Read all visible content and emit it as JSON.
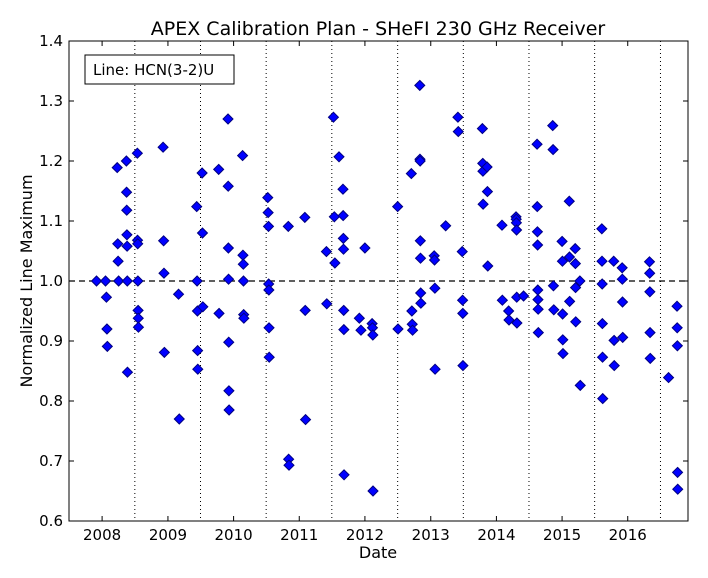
{
  "chart_data": {
    "type": "scatter",
    "title": "APEX Calibration Plan - SHeFI 230 GHz Receiver",
    "xlabel": "Date",
    "ylabel": "Normalized Line Maximum",
    "xlim": [
      "2007-07-01",
      "2016-12-01"
    ],
    "ylim": [
      0.6,
      1.4
    ],
    "x_ticks": [
      "2008",
      "2009",
      "2010",
      "2011",
      "2012",
      "2013",
      "2014",
      "2015",
      "2016"
    ],
    "x_tick_dates": [
      "2008-01-01",
      "2009-01-01",
      "2010-01-01",
      "2011-01-01",
      "2012-01-01",
      "2013-01-01",
      "2014-01-01",
      "2015-01-01",
      "2016-01-01"
    ],
    "y_ticks": [
      "0.6",
      "0.7",
      "0.8",
      "0.9",
      "1.0",
      "1.1",
      "1.2",
      "1.3",
      "1.4"
    ],
    "y_tick_values": [
      0.6,
      0.7,
      0.8,
      0.9,
      1.0,
      1.1,
      1.2,
      1.3,
      1.4
    ],
    "vertical_dotted_lines": [
      "2008-07-01",
      "2009-07-01",
      "2010-07-01",
      "2011-07-01",
      "2012-07-01",
      "2013-07-01",
      "2014-07-01",
      "2015-07-01",
      "2016-07-01"
    ],
    "reference_line": 1.0,
    "legend": {
      "text": "Line: HCN(3-2)U",
      "position": "top-left"
    },
    "marker_color": "#0000ff",
    "marker_edge": "#00007f",
    "points": [
      [
        "2007-12-01",
        1.0
      ],
      [
        "2008-01-20",
        1.0
      ],
      [
        "2008-01-25",
        0.973
      ],
      [
        "2008-01-28",
        0.92
      ],
      [
        "2008-01-30",
        0.891
      ],
      [
        "2008-03-25",
        1.189
      ],
      [
        "2008-03-28",
        1.062
      ],
      [
        "2008-03-30",
        1.033
      ],
      [
        "2008-04-02",
        1.0
      ],
      [
        "2008-05-15",
        1.2
      ],
      [
        "2008-05-16",
        1.148
      ],
      [
        "2008-05-17",
        1.118
      ],
      [
        "2008-05-18",
        1.077
      ],
      [
        "2008-05-19",
        1.058
      ],
      [
        "2008-05-20",
        1.0
      ],
      [
        "2008-05-21",
        0.848
      ],
      [
        "2008-07-15",
        1.213
      ],
      [
        "2008-07-16",
        1.068
      ],
      [
        "2008-07-17",
        1.062
      ],
      [
        "2008-07-18",
        1.0
      ],
      [
        "2008-07-19",
        0.951
      ],
      [
        "2008-07-20",
        0.938
      ],
      [
        "2008-07-21",
        0.923
      ],
      [
        "2008-12-05",
        1.223
      ],
      [
        "2008-12-08",
        1.067
      ],
      [
        "2008-12-10",
        1.013
      ],
      [
        "2008-12-12",
        0.881
      ],
      [
        "2009-03-01",
        0.978
      ],
      [
        "2009-03-05",
        0.77
      ],
      [
        "2009-06-10",
        1.124
      ],
      [
        "2009-06-12",
        1.0
      ],
      [
        "2009-06-14",
        0.95
      ],
      [
        "2009-06-15",
        0.884
      ],
      [
        "2009-06-16",
        0.853
      ],
      [
        "2009-07-10",
        1.18
      ],
      [
        "2009-07-12",
        1.08
      ],
      [
        "2009-07-14",
        0.957
      ],
      [
        "2009-10-10",
        1.186
      ],
      [
        "2009-10-12",
        0.946
      ],
      [
        "2009-12-01",
        1.27
      ],
      [
        "2009-12-02",
        1.158
      ],
      [
        "2009-12-03",
        1.055
      ],
      [
        "2009-12-04",
        1.003
      ],
      [
        "2009-12-05",
        0.898
      ],
      [
        "2009-12-06",
        0.817
      ],
      [
        "2009-12-07",
        0.785
      ],
      [
        "2010-02-20",
        1.209
      ],
      [
        "2010-02-22",
        1.043
      ],
      [
        "2010-02-24",
        1.028
      ],
      [
        "2010-02-25",
        1.0
      ],
      [
        "2010-02-26",
        0.944
      ],
      [
        "2010-02-27",
        0.938
      ],
      [
        "2010-07-10",
        1.139
      ],
      [
        "2010-07-12",
        1.114
      ],
      [
        "2010-07-14",
        1.091
      ],
      [
        "2010-07-15",
        0.995
      ],
      [
        "2010-07-16",
        0.985
      ],
      [
        "2010-07-17",
        0.922
      ],
      [
        "2010-07-18",
        0.873
      ],
      [
        "2010-11-01",
        1.091
      ],
      [
        "2010-11-03",
        0.703
      ],
      [
        "2010-11-05",
        0.693
      ],
      [
        "2011-02-01",
        1.106
      ],
      [
        "2011-02-03",
        0.951
      ],
      [
        "2011-02-05",
        0.769
      ],
      [
        "2011-06-01",
        1.049
      ],
      [
        "2011-06-03",
        0.962
      ],
      [
        "2011-07-10",
        1.273
      ],
      [
        "2011-07-15",
        1.107
      ],
      [
        "2011-07-18",
        1.03
      ],
      [
        "2011-08-10",
        1.207
      ],
      [
        "2011-09-01",
        1.153
      ],
      [
        "2011-09-02",
        1.109
      ],
      [
        "2011-09-03",
        1.071
      ],
      [
        "2011-09-04",
        1.053
      ],
      [
        "2011-09-05",
        0.951
      ],
      [
        "2011-09-06",
        0.919
      ],
      [
        "2011-09-07",
        0.677
      ],
      [
        "2011-12-01",
        0.938
      ],
      [
        "2011-12-10",
        0.918
      ],
      [
        "2012-01-01",
        1.055
      ],
      [
        "2012-02-10",
        0.929
      ],
      [
        "2012-02-12",
        0.922
      ],
      [
        "2012-02-14",
        0.91
      ],
      [
        "2012-02-15",
        0.65
      ],
      [
        "2012-07-01",
        1.124
      ],
      [
        "2012-07-03",
        0.92
      ],
      [
        "2012-09-15",
        1.179
      ],
      [
        "2012-09-18",
        0.95
      ],
      [
        "2012-09-20",
        0.928
      ],
      [
        "2012-09-22",
        0.918
      ],
      [
        "2012-11-01",
        1.326
      ],
      [
        "2012-11-02",
        1.203
      ],
      [
        "2012-11-03",
        1.2
      ],
      [
        "2012-11-04",
        1.067
      ],
      [
        "2012-11-05",
        1.038
      ],
      [
        "2012-11-06",
        0.98
      ],
      [
        "2012-11-07",
        0.963
      ],
      [
        "2013-01-20",
        1.042
      ],
      [
        "2013-01-22",
        1.035
      ],
      [
        "2013-01-24",
        0.988
      ],
      [
        "2013-01-25",
        0.853
      ],
      [
        "2013-03-25",
        1.092
      ],
      [
        "2013-06-01",
        1.273
      ],
      [
        "2013-06-03",
        1.249
      ],
      [
        "2013-06-25",
        1.049
      ],
      [
        "2013-06-27",
        0.968
      ],
      [
        "2013-06-28",
        0.946
      ],
      [
        "2013-06-29",
        0.859
      ],
      [
        "2013-10-15",
        1.254
      ],
      [
        "2013-10-17",
        1.196
      ],
      [
        "2013-10-18",
        1.183
      ],
      [
        "2013-10-19",
        1.128
      ],
      [
        "2013-11-10",
        1.19
      ],
      [
        "2013-11-12",
        1.149
      ],
      [
        "2013-11-14",
        1.025
      ],
      [
        "2014-02-01",
        1.093
      ],
      [
        "2014-02-03",
        0.968
      ],
      [
        "2014-03-10",
        0.95
      ],
      [
        "2014-03-12",
        0.935
      ],
      [
        "2014-04-20",
        1.107
      ],
      [
        "2014-04-21",
        1.103
      ],
      [
        "2014-04-22",
        1.097
      ],
      [
        "2014-04-23",
        1.085
      ],
      [
        "2014-04-24",
        0.973
      ],
      [
        "2014-04-25",
        0.93
      ],
      [
        "2014-06-01",
        0.975
      ],
      [
        "2014-08-15",
        1.228
      ],
      [
        "2014-08-16",
        1.124
      ],
      [
        "2014-08-17",
        1.082
      ],
      [
        "2014-08-18",
        1.06
      ],
      [
        "2014-08-19",
        0.985
      ],
      [
        "2014-08-20",
        0.969
      ],
      [
        "2014-08-21",
        0.953
      ],
      [
        "2014-08-22",
        0.914
      ],
      [
        "2014-11-10",
        1.259
      ],
      [
        "2014-11-12",
        1.219
      ],
      [
        "2014-11-14",
        0.992
      ],
      [
        "2014-11-16",
        0.952
      ],
      [
        "2015-01-01",
        1.066
      ],
      [
        "2015-01-03",
        1.033
      ],
      [
        "2015-01-04",
        0.945
      ],
      [
        "2015-01-05",
        0.902
      ],
      [
        "2015-01-06",
        0.879
      ],
      [
        "2015-02-10",
        1.133
      ],
      [
        "2015-02-11",
        1.04
      ],
      [
        "2015-02-12",
        0.966
      ],
      [
        "2015-03-15",
        1.054
      ],
      [
        "2015-03-16",
        1.029
      ],
      [
        "2015-03-17",
        0.989
      ],
      [
        "2015-03-18",
        0.932
      ],
      [
        "2015-04-10",
        1.0
      ],
      [
        "2015-04-12",
        0.826
      ],
      [
        "2015-08-10",
        1.087
      ],
      [
        "2015-08-11",
        1.033
      ],
      [
        "2015-08-12",
        0.995
      ],
      [
        "2015-08-13",
        0.929
      ],
      [
        "2015-08-14",
        0.873
      ],
      [
        "2015-08-15",
        0.804
      ],
      [
        "2015-10-15",
        1.033
      ],
      [
        "2015-10-17",
        0.901
      ],
      [
        "2015-10-18",
        0.859
      ],
      [
        "2015-12-01",
        1.022
      ],
      [
        "2015-12-02",
        1.003
      ],
      [
        "2015-12-03",
        0.965
      ],
      [
        "2015-12-04",
        0.906
      ],
      [
        "2016-05-01",
        1.032
      ],
      [
        "2016-05-02",
        1.013
      ],
      [
        "2016-05-03",
        0.982
      ],
      [
        "2016-05-04",
        0.914
      ],
      [
        "2016-05-05",
        0.871
      ],
      [
        "2016-08-15",
        0.839
      ],
      [
        "2016-10-01",
        0.958
      ],
      [
        "2016-10-02",
        0.922
      ],
      [
        "2016-10-03",
        0.892
      ],
      [
        "2016-10-04",
        0.681
      ],
      [
        "2016-10-05",
        0.653
      ]
    ]
  }
}
